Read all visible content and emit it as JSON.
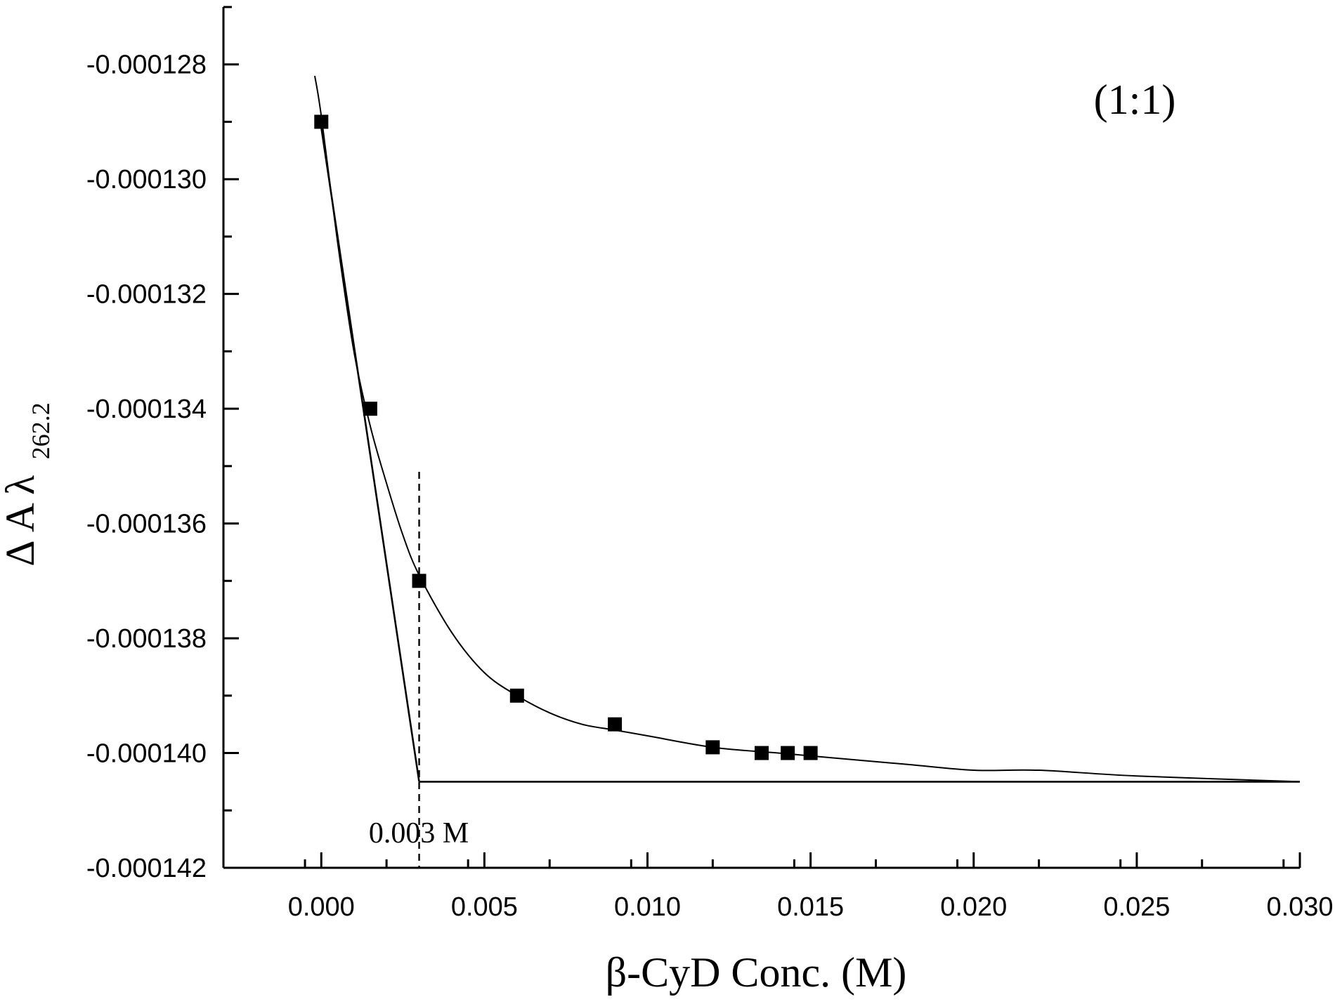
{
  "chart_data": {
    "type": "scatter",
    "title": "",
    "xlabel": "β-CyD Conc. (M)",
    "ylabel_main": "Δ A λ",
    "ylabel_sub": "262.2",
    "annotation_ratio": "(1:1)",
    "annotation_break": "0.003 M",
    "xlim": [
      -0.003,
      0.03
    ],
    "ylim": [
      -0.000142,
      -0.000127
    ],
    "x_ticks": [
      0.0,
      0.005,
      0.01,
      0.015,
      0.02,
      0.025,
      0.03
    ],
    "x_tick_labels": [
      "0.000",
      "0.005",
      "0.010",
      "0.015",
      "0.020",
      "0.025",
      "0.030"
    ],
    "y_ticks": [
      -0.000128,
      -0.00013,
      -0.000132,
      -0.000134,
      -0.000136,
      -0.000138,
      -0.00014,
      -0.000142
    ],
    "y_tick_labels": [
      "-0.000128",
      "-0.000130",
      "-0.000132",
      "-0.000134",
      "-0.000136",
      "-0.000138",
      "-0.000140",
      "-0.000142"
    ],
    "grid": false,
    "legend": "none",
    "series": [
      {
        "kind": "points",
        "marker": "filled-square",
        "x": [
          0.0,
          0.0015,
          0.003,
          0.006,
          0.009,
          0.012,
          0.0135,
          0.0143,
          0.015
        ],
        "y": [
          -0.000129,
          -0.000134,
          -0.000137,
          -0.000139,
          -0.0001395,
          -0.0001399,
          -0.00014,
          -0.00014,
          -0.00014
        ]
      },
      {
        "kind": "fit-curve",
        "x": [
          -0.0002,
          0.0,
          0.0005,
          0.001,
          0.0015,
          0.002,
          0.0025,
          0.003,
          0.004,
          0.005,
          0.006,
          0.007,
          0.008,
          0.009,
          0.01,
          0.012,
          0.014,
          0.016,
          0.018,
          0.02,
          0.022,
          0.025,
          0.03
        ],
        "y": [
          -0.0001282,
          -0.0001289,
          -0.0001311,
          -0.000133,
          -0.0001343,
          -0.0001353,
          -0.0001362,
          -0.0001369,
          -0.0001379,
          -0.0001386,
          -0.000139,
          -0.0001393,
          -0.0001395,
          -0.0001396,
          -0.0001397,
          -0.0001399,
          -0.00014,
          -0.0001401,
          -0.0001402,
          -0.0001403,
          -0.0001403,
          -0.0001404,
          -0.0001405
        ]
      },
      {
        "kind": "tangent-line",
        "x": [
          0.0,
          0.003
        ],
        "y": [
          -0.0001291,
          -0.0001405
        ]
      },
      {
        "kind": "plateau-line",
        "x": [
          0.003,
          0.03
        ],
        "y": [
          -0.0001405,
          -0.0001405
        ]
      },
      {
        "kind": "break-point-dashed",
        "x": [
          0.003,
          0.003
        ],
        "y": [
          -0.0001351,
          -0.000142
        ]
      }
    ],
    "colors": {
      "ink": "#000000",
      "background": "#ffffff"
    }
  }
}
